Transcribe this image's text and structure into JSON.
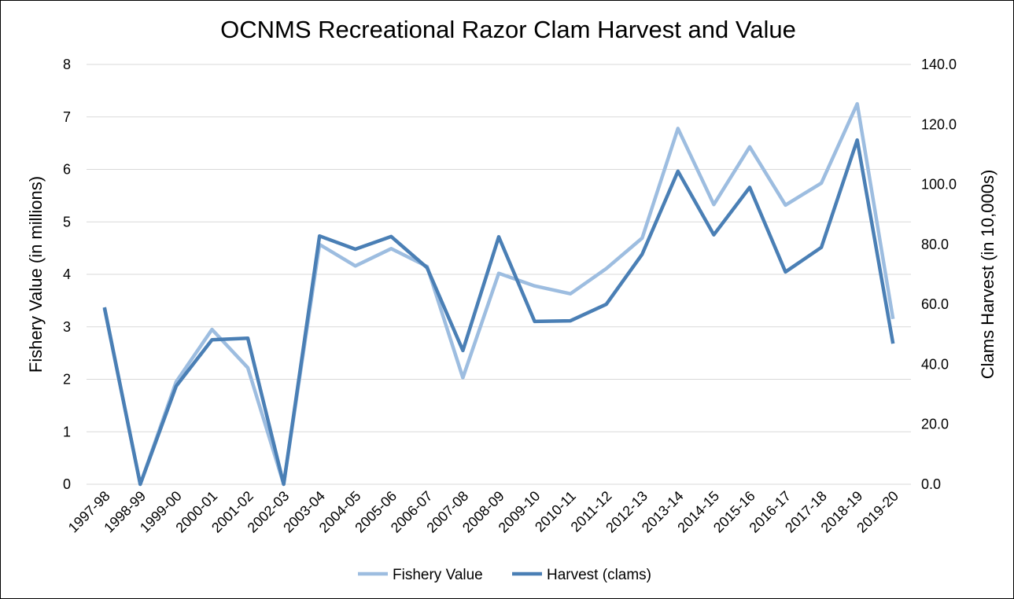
{
  "chart_data": {
    "type": "line",
    "title": "OCNMS Recreational Razor Clam Harvest and Value",
    "categories": [
      "1997-98",
      "1998-99",
      "1999-00",
      "2000-01",
      "2001-02",
      "2002-03",
      "2003-04",
      "2004-05",
      "2005-06",
      "2006-07",
      "2007-08",
      "2008-09",
      "2009-10",
      "2010-11",
      "2011-12",
      "2012-13",
      "2013-14",
      "2014-15",
      "2015-16",
      "2016-17",
      "2017-18",
      "2018-19",
      "2019-20"
    ],
    "y_left": {
      "label": "Fishery Value (in millions)",
      "range": [
        0,
        8
      ],
      "ticks": [
        "0",
        "1",
        "2",
        "3",
        "4",
        "5",
        "6",
        "7",
        "8"
      ]
    },
    "y_right": {
      "label": "Clams Harvest (in 10,000s)",
      "range": [
        0,
        140
      ],
      "ticks": [
        "0.0",
        "20.0",
        "40.0",
        "60.0",
        "80.0",
        "100.0",
        "120.0",
        "140.0"
      ]
    },
    "grid": true,
    "legend_position": "bottom",
    "series": [
      {
        "name": "Fishery Value",
        "axis": "left",
        "color": "#9dbde0",
        "values": [
          3.35,
          0.0,
          1.95,
          2.95,
          2.22,
          0.0,
          4.57,
          4.16,
          4.49,
          4.15,
          2.03,
          4.02,
          3.78,
          3.63,
          4.11,
          4.69,
          6.78,
          5.33,
          6.43,
          5.32,
          5.74,
          7.25,
          3.15
        ]
      },
      {
        "name": "Harvest (clams)",
        "axis": "right",
        "color": "#4a7fb5",
        "values": [
          59.0,
          0.0,
          32.7,
          48.2,
          48.7,
          0.0,
          82.8,
          78.4,
          82.6,
          72.2,
          44.6,
          82.5,
          54.3,
          54.5,
          60.0,
          76.7,
          104.4,
          83.2,
          99.0,
          70.8,
          79.0,
          114.8,
          46.9
        ]
      }
    ]
  }
}
